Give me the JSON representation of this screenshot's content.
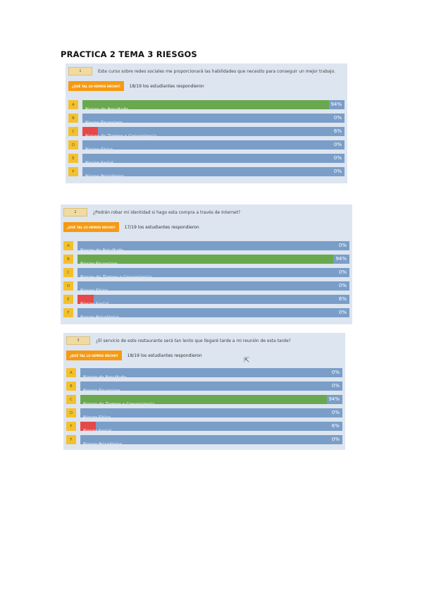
{
  "page_title": "PRACTICA 2 TEMA 3 RIESGOS",
  "response_button_label": "¿QUÉ TAL LO HEMOS HECHO?",
  "colors": {
    "correct": "#6aa84f",
    "wrong": "#e54a4a",
    "neutral": "#7a9ec8",
    "letter": "#f3c12e",
    "button": "#f59a12"
  },
  "questions": [
    {
      "number": "1",
      "text": "Este curso sobre redes sociales me proporcionará las habilidades que necesito para conseguir un mejor trabajo.",
      "responses": "18/19 los estudiantes respondieron",
      "options": [
        {
          "letter": "A",
          "label": "Riesgo de Resultado",
          "pct_text": "94%",
          "value": 0.94,
          "state": "correct"
        },
        {
          "letter": "B",
          "label": "Riesgo Financiero",
          "pct_text": "0%",
          "value": 0,
          "state": "none"
        },
        {
          "letter": "C",
          "label": "Riesgo de Tiempo o Conveniencia",
          "pct_text": "6%",
          "value": 0.06,
          "state": "wrong"
        },
        {
          "letter": "D",
          "label": "Riesgo Físico",
          "pct_text": "0%",
          "value": 0,
          "state": "none"
        },
        {
          "letter": "E",
          "label": "Riesgo Social",
          "pct_text": "0%",
          "value": 0,
          "state": "none"
        },
        {
          "letter": "F",
          "label": "Riesgo Psicológico",
          "pct_text": "0%",
          "value": 0,
          "state": "none"
        }
      ]
    },
    {
      "number": "2",
      "text": "¿Podrán robar mi identidad si hago esta compra a través de Internet?",
      "responses": "17/19 los estudiantes respondieron",
      "options": [
        {
          "letter": "A",
          "label": "Riesgo de Resultado",
          "pct_text": "0%",
          "value": 0,
          "state": "none"
        },
        {
          "letter": "B",
          "label": "Riesgo Financiero",
          "pct_text": "94%",
          "value": 0.94,
          "state": "correct"
        },
        {
          "letter": "C",
          "label": "Riesgo de Tiempo o Conveniencia",
          "pct_text": "0%",
          "value": 0,
          "state": "none"
        },
        {
          "letter": "D",
          "label": "Riesgo Físico",
          "pct_text": "0%",
          "value": 0,
          "state": "none"
        },
        {
          "letter": "E",
          "label": "Riesgo Social",
          "pct_text": "6%",
          "value": 0.06,
          "state": "wrong"
        },
        {
          "letter": "F",
          "label": "Riesgo Psicológico",
          "pct_text": "0%",
          "value": 0,
          "state": "none"
        }
      ]
    },
    {
      "number": "3",
      "text": "¿El servicio de este restaurante será tan lento que llegaré tarde a mi reunión de esta tarde?",
      "responses": "18/19 los estudiantes respondieron",
      "options": [
        {
          "letter": "A",
          "label": "Riesgo de Resultado",
          "pct_text": "0%",
          "value": 0,
          "state": "none"
        },
        {
          "letter": "B",
          "label": "Riesgo Financiero",
          "pct_text": "0%",
          "value": 0,
          "state": "none"
        },
        {
          "letter": "C",
          "label": "Riesgo de Tiempo o Conveniencia",
          "pct_text": "94%",
          "value": 0.94,
          "state": "correct"
        },
        {
          "letter": "D",
          "label": "Riesgo Físico",
          "pct_text": "0%",
          "value": 0,
          "state": "none"
        },
        {
          "letter": "F",
          "label": "Riesgo Social",
          "pct_text": "6%",
          "value": 0.06,
          "state": "wrong"
        },
        {
          "letter": "F",
          "label": "Riesgo Psicológico",
          "pct_text": "0%",
          "value": 0,
          "state": "none"
        }
      ]
    }
  ]
}
